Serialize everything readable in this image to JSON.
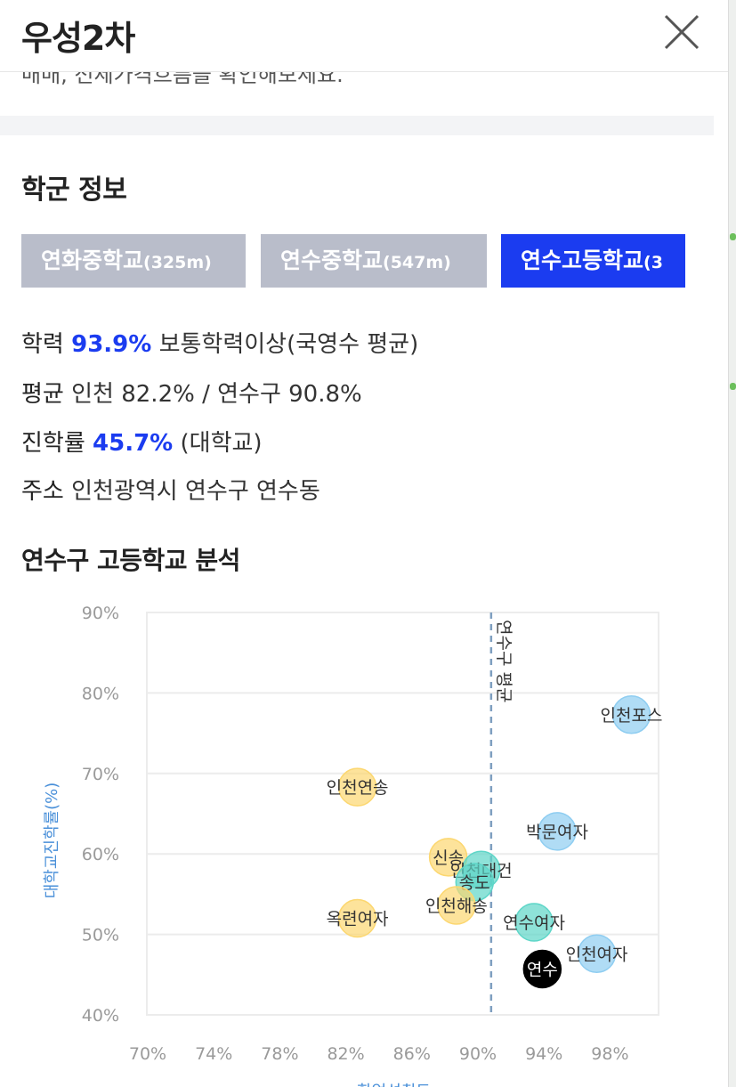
{
  "header": {
    "title": "우성2차",
    "close_icon": "close-icon"
  },
  "intro_text_cut": "매매, 전세가격흐름을 확인해보세요.",
  "school_section": {
    "title": "학군 정보",
    "tabs": [
      {
        "name": "연화중학교",
        "distance": "(325m)",
        "active": false
      },
      {
        "name": "연수중학교",
        "distance": "(547m)",
        "active": false
      },
      {
        "name": "연수고등학교",
        "distance": "(3",
        "active": true
      }
    ],
    "academic": {
      "label": "학력",
      "value": "93.9%",
      "suffix": "보통학력이상(국영수 평균)"
    },
    "average": {
      "label": "평균",
      "text": "인천 82.2% / 연수구 90.8%"
    },
    "advancement": {
      "label": "진학률",
      "value": "45.7%",
      "suffix": "(대학교)"
    },
    "address": {
      "label": "주소",
      "text": "인천광역시 연수구 연수동"
    }
  },
  "colors": {
    "accent": "#1b3cf0",
    "tab_inactive": "#b9bdca",
    "yellow": "#fcd770",
    "teal": "#5ed6c8",
    "blue": "#8ecdf1",
    "black": "#000000"
  },
  "chart_data": {
    "type": "scatter",
    "title": "연수구 고등학교 분석",
    "ylabel": "대학교진학률(%)",
    "xlabel": "학업성취도",
    "x_ticks": [
      "70%",
      "74%",
      "78%",
      "82%",
      "86%",
      "90%",
      "94%",
      "98%"
    ],
    "y_ticks": [
      "90%",
      "80%",
      "70%",
      "60%",
      "50%",
      "40%"
    ],
    "xlim": [
      70,
      101
    ],
    "ylim": [
      40,
      90
    ],
    "grid": true,
    "reference_line": {
      "x": 90.8,
      "label": "연수구 평균"
    },
    "points": [
      {
        "label": "인천포스",
        "x": 99.3,
        "y": 77.3,
        "color": "blue"
      },
      {
        "label": "인천연송",
        "x": 82.7,
        "y": 68.3,
        "color": "yellow"
      },
      {
        "label": "박문여자",
        "x": 94.8,
        "y": 62.8,
        "color": "blue"
      },
      {
        "label": "신송",
        "x": 88.2,
        "y": 59.6,
        "color": "yellow"
      },
      {
        "label": "인천대건",
        "x": 90.2,
        "y": 58.0,
        "color": "teal"
      },
      {
        "label": "송도",
        "x": 89.8,
        "y": 56.5,
        "color": "teal"
      },
      {
        "label": "인천해송",
        "x": 88.7,
        "y": 53.6,
        "color": "yellow"
      },
      {
        "label": "옥련여자",
        "x": 82.7,
        "y": 52.0,
        "color": "yellow"
      },
      {
        "label": "연수여자",
        "x": 93.4,
        "y": 51.5,
        "color": "teal"
      },
      {
        "label": "인천여자",
        "x": 97.2,
        "y": 47.6,
        "color": "blue"
      },
      {
        "label": "연수",
        "x": 93.9,
        "y": 45.7,
        "color": "black"
      }
    ]
  }
}
